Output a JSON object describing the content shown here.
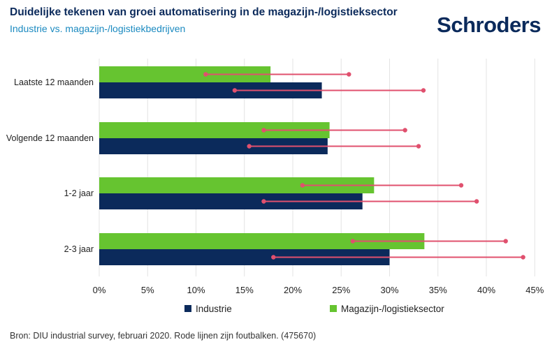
{
  "header": {
    "title": "Duidelijke tekenen van groei automatisering in de magazijn-/logistieksector",
    "subtitle": "Industrie vs. magazijn-/logistiekbedrijven",
    "logo_text": "Schroders"
  },
  "footer": {
    "source": "Bron: DIU industrial survey, februari 2020. Rode lijnen zijn foutbalken. (475670)"
  },
  "chart_data": {
    "type": "bar",
    "orientation": "horizontal",
    "title": "Duidelijke tekenen van groei automatisering in de magazijn-/logistieksector",
    "subtitle": "Industrie vs. magazijn-/logistiekbedrijven",
    "categories": [
      "Laatste 12 maanden",
      "Volgende 12 maanden",
      "1-2 jaar",
      "2-3 jaar"
    ],
    "x_ticks": [
      "0%",
      "5%",
      "10%",
      "15%",
      "20%",
      "25%",
      "30%",
      "35%",
      "40%",
      "45%"
    ],
    "xlim": [
      0,
      45
    ],
    "grid": true,
    "legend_position": "bottom",
    "series": [
      {
        "name": "Magazijn-/logistieksector",
        "color": "#66c430",
        "values": [
          17.7,
          23.8,
          28.4,
          33.6
        ],
        "error_low": [
          11.0,
          17.0,
          21.0,
          26.2
        ],
        "error_high": [
          25.8,
          31.6,
          37.4,
          42.0
        ]
      },
      {
        "name": "Industrie",
        "color": "#0b2a5b",
        "values": [
          23.0,
          23.6,
          27.2,
          30.0
        ],
        "error_low": [
          14.0,
          15.5,
          17.0,
          18.0
        ],
        "error_high": [
          33.5,
          33.0,
          39.0,
          43.8
        ]
      }
    ],
    "error_bar_color": "#e0506e"
  }
}
